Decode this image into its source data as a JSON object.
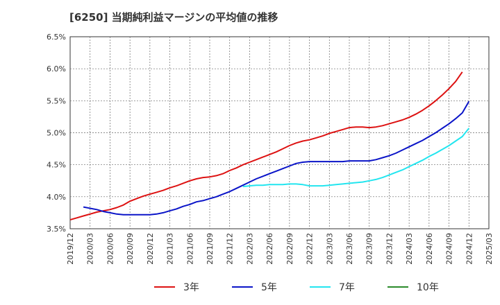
{
  "title": "[6250]  当期純利益マージンの平均値の推移",
  "chart_data": {
    "type": "line",
    "title": "[6250]  当期純利益マージンの平均値の推移",
    "y_ticks": [
      "3.5%",
      "4.0%",
      "4.5%",
      "5.0%",
      "5.5%",
      "6.0%",
      "6.5%"
    ],
    "ylim": [
      3.5,
      6.5
    ],
    "x_ticks": [
      "2019/12",
      "2020/03",
      "2020/06",
      "2020/09",
      "2020/12",
      "2021/03",
      "2021/06",
      "2021/09",
      "2021/12",
      "2022/03",
      "2022/06",
      "2022/09",
      "2022/12",
      "2023/03",
      "2023/06",
      "2023/09",
      "2023/12",
      "2024/03",
      "2024/06",
      "2024/09",
      "2024/12",
      "2025/03"
    ],
    "grid": true,
    "legend_position": "bottom",
    "series": [
      {
        "name": "3年",
        "color": "#dd1111",
        "points": [
          [
            "2019/12",
            3.64
          ],
          [
            "2020/01",
            3.67
          ],
          [
            "2020/02",
            3.7
          ],
          [
            "2020/03",
            3.73
          ],
          [
            "2020/04",
            3.76
          ],
          [
            "2020/05",
            3.78
          ],
          [
            "2020/06",
            3.8
          ],
          [
            "2020/07",
            3.83
          ],
          [
            "2020/08",
            3.87
          ],
          [
            "2020/09",
            3.93
          ],
          [
            "2020/10",
            3.97
          ],
          [
            "2020/11",
            4.01
          ],
          [
            "2020/12",
            4.04
          ],
          [
            "2021/01",
            4.07
          ],
          [
            "2021/02",
            4.1
          ],
          [
            "2021/03",
            4.14
          ],
          [
            "2021/04",
            4.17
          ],
          [
            "2021/05",
            4.21
          ],
          [
            "2021/06",
            4.25
          ],
          [
            "2021/07",
            4.28
          ],
          [
            "2021/08",
            4.3
          ],
          [
            "2021/09",
            4.31
          ],
          [
            "2021/10",
            4.33
          ],
          [
            "2021/11",
            4.36
          ],
          [
            "2021/12",
            4.41
          ],
          [
            "2022/01",
            4.45
          ],
          [
            "2022/02",
            4.5
          ],
          [
            "2022/03",
            4.54
          ],
          [
            "2022/04",
            4.58
          ],
          [
            "2022/05",
            4.62
          ],
          [
            "2022/06",
            4.66
          ],
          [
            "2022/07",
            4.7
          ],
          [
            "2022/08",
            4.75
          ],
          [
            "2022/09",
            4.8
          ],
          [
            "2022/10",
            4.84
          ],
          [
            "2022/11",
            4.87
          ],
          [
            "2022/12",
            4.89
          ],
          [
            "2023/01",
            4.92
          ],
          [
            "2023/02",
            4.95
          ],
          [
            "2023/03",
            4.99
          ],
          [
            "2023/04",
            5.02
          ],
          [
            "2023/05",
            5.05
          ],
          [
            "2023/06",
            5.08
          ],
          [
            "2023/07",
            5.09
          ],
          [
            "2023/08",
            5.09
          ],
          [
            "2023/09",
            5.08
          ],
          [
            "2023/10",
            5.09
          ],
          [
            "2023/11",
            5.11
          ],
          [
            "2023/12",
            5.14
          ],
          [
            "2024/01",
            5.17
          ],
          [
            "2024/02",
            5.2
          ],
          [
            "2024/03",
            5.24
          ],
          [
            "2024/04",
            5.29
          ],
          [
            "2024/05",
            5.35
          ],
          [
            "2024/06",
            5.42
          ],
          [
            "2024/07",
            5.5
          ],
          [
            "2024/08",
            5.59
          ],
          [
            "2024/09",
            5.69
          ],
          [
            "2024/10",
            5.8
          ],
          [
            "2024/11",
            5.95
          ]
        ]
      },
      {
        "name": "5年",
        "color": "#0a14c8",
        "points": [
          [
            "2020/02",
            3.84
          ],
          [
            "2020/03",
            3.82
          ],
          [
            "2020/04",
            3.8
          ],
          [
            "2020/05",
            3.77
          ],
          [
            "2020/06",
            3.75
          ],
          [
            "2020/07",
            3.73
          ],
          [
            "2020/08",
            3.72
          ],
          [
            "2020/09",
            3.72
          ],
          [
            "2020/10",
            3.72
          ],
          [
            "2020/11",
            3.72
          ],
          [
            "2020/12",
            3.72
          ],
          [
            "2021/01",
            3.73
          ],
          [
            "2021/02",
            3.75
          ],
          [
            "2021/03",
            3.78
          ],
          [
            "2021/04",
            3.81
          ],
          [
            "2021/05",
            3.85
          ],
          [
            "2021/06",
            3.88
          ],
          [
            "2021/07",
            3.92
          ],
          [
            "2021/08",
            3.94
          ],
          [
            "2021/09",
            3.97
          ],
          [
            "2021/10",
            4.0
          ],
          [
            "2021/11",
            4.04
          ],
          [
            "2021/12",
            4.08
          ],
          [
            "2022/01",
            4.13
          ],
          [
            "2022/02",
            4.18
          ],
          [
            "2022/03",
            4.23
          ],
          [
            "2022/04",
            4.28
          ],
          [
            "2022/05",
            4.32
          ],
          [
            "2022/06",
            4.36
          ],
          [
            "2022/07",
            4.4
          ],
          [
            "2022/08",
            4.44
          ],
          [
            "2022/09",
            4.48
          ],
          [
            "2022/10",
            4.52
          ],
          [
            "2022/11",
            4.54
          ],
          [
            "2022/12",
            4.55
          ],
          [
            "2023/01",
            4.55
          ],
          [
            "2023/02",
            4.55
          ],
          [
            "2023/03",
            4.55
          ],
          [
            "2023/04",
            4.55
          ],
          [
            "2023/05",
            4.55
          ],
          [
            "2023/06",
            4.56
          ],
          [
            "2023/07",
            4.56
          ],
          [
            "2023/08",
            4.56
          ],
          [
            "2023/09",
            4.56
          ],
          [
            "2023/10",
            4.58
          ],
          [
            "2023/11",
            4.61
          ],
          [
            "2023/12",
            4.64
          ],
          [
            "2024/01",
            4.68
          ],
          [
            "2024/02",
            4.73
          ],
          [
            "2024/03",
            4.78
          ],
          [
            "2024/04",
            4.83
          ],
          [
            "2024/05",
            4.88
          ],
          [
            "2024/06",
            4.94
          ],
          [
            "2024/07",
            5.0
          ],
          [
            "2024/08",
            5.07
          ],
          [
            "2024/09",
            5.14
          ],
          [
            "2024/10",
            5.22
          ],
          [
            "2024/11",
            5.31
          ],
          [
            "2024/12",
            5.49
          ]
        ]
      },
      {
        "name": "7年",
        "color": "#22e5ef",
        "points": [
          [
            "2022/02",
            4.16
          ],
          [
            "2022/03",
            4.17
          ],
          [
            "2022/04",
            4.18
          ],
          [
            "2022/05",
            4.18
          ],
          [
            "2022/06",
            4.19
          ],
          [
            "2022/07",
            4.19
          ],
          [
            "2022/08",
            4.19
          ],
          [
            "2022/09",
            4.2
          ],
          [
            "2022/10",
            4.2
          ],
          [
            "2022/11",
            4.19
          ],
          [
            "2022/12",
            4.17
          ],
          [
            "2023/01",
            4.17
          ],
          [
            "2023/02",
            4.17
          ],
          [
            "2023/03",
            4.18
          ],
          [
            "2023/04",
            4.19
          ],
          [
            "2023/05",
            4.2
          ],
          [
            "2023/06",
            4.21
          ],
          [
            "2023/07",
            4.22
          ],
          [
            "2023/08",
            4.23
          ],
          [
            "2023/09",
            4.25
          ],
          [
            "2023/10",
            4.27
          ],
          [
            "2023/11",
            4.3
          ],
          [
            "2023/12",
            4.34
          ],
          [
            "2024/01",
            4.38
          ],
          [
            "2024/02",
            4.42
          ],
          [
            "2024/03",
            4.47
          ],
          [
            "2024/04",
            4.52
          ],
          [
            "2024/05",
            4.57
          ],
          [
            "2024/06",
            4.63
          ],
          [
            "2024/07",
            4.68
          ],
          [
            "2024/08",
            4.74
          ],
          [
            "2024/09",
            4.8
          ],
          [
            "2024/10",
            4.87
          ],
          [
            "2024/11",
            4.94
          ],
          [
            "2024/12",
            5.07
          ]
        ]
      },
      {
        "name": "10年",
        "color": "#2a8a2a",
        "points": []
      }
    ]
  }
}
